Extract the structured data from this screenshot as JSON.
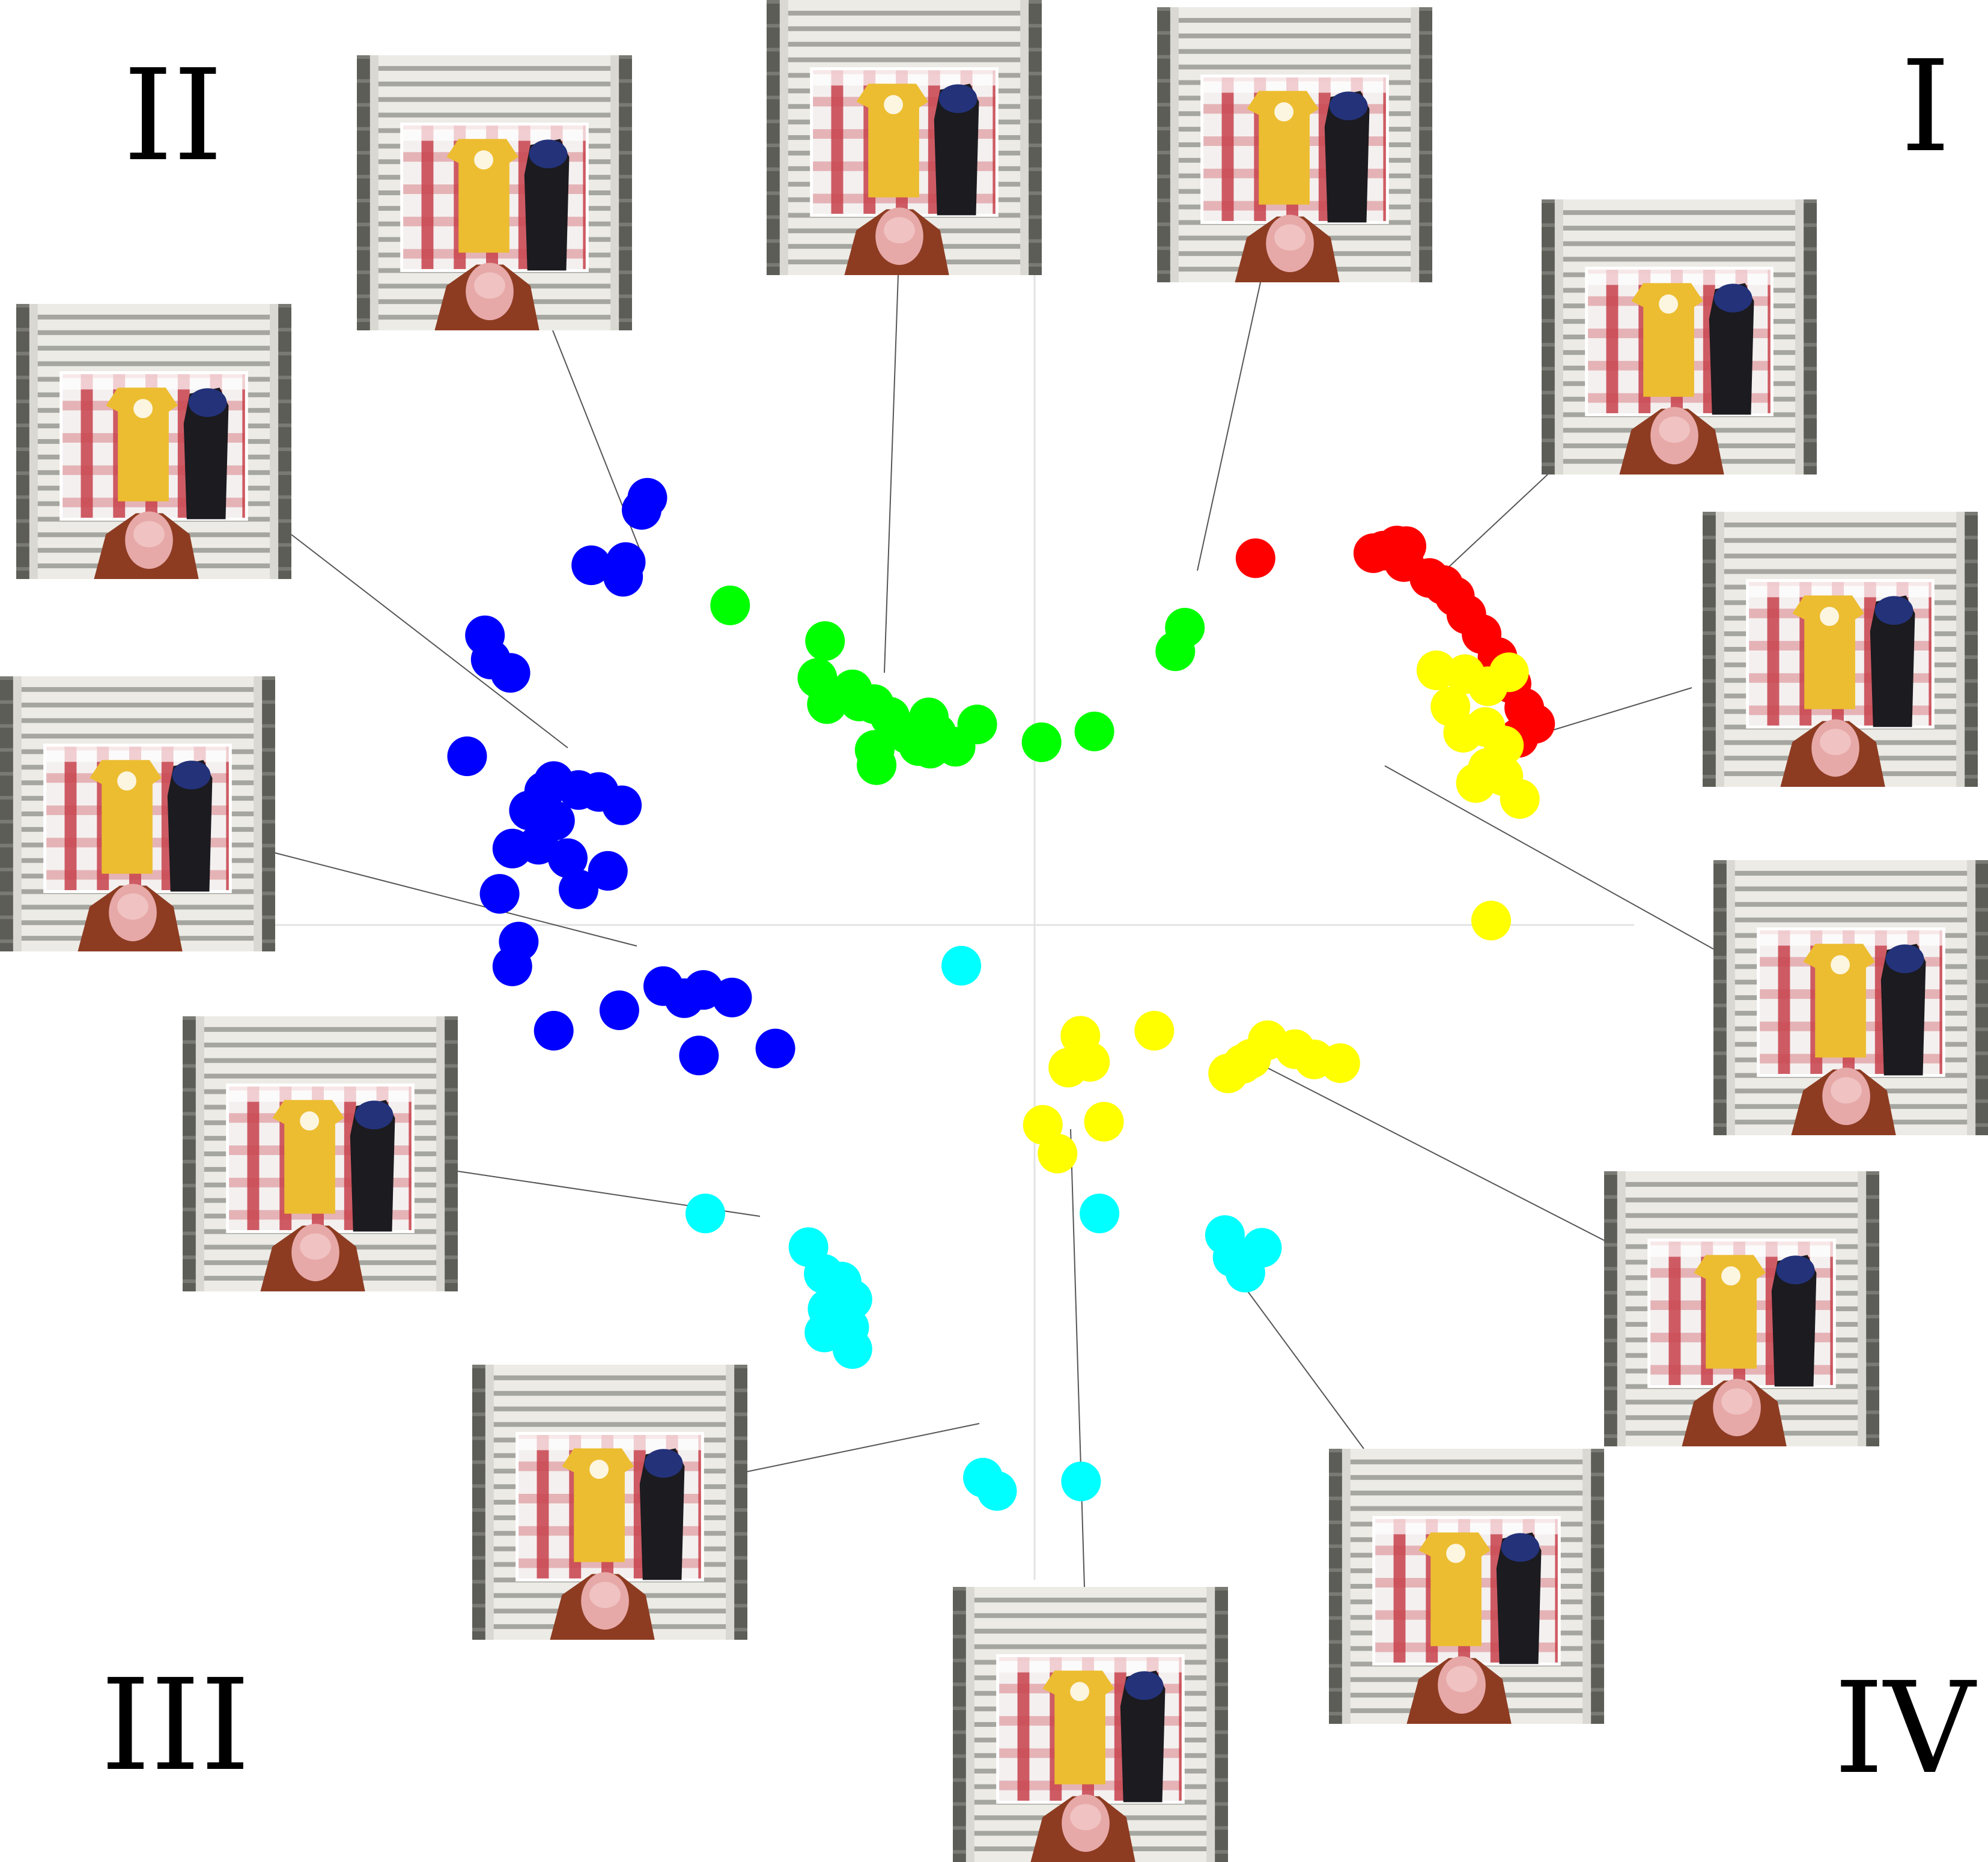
{
  "chart_data": {
    "type": "scatter",
    "title": "",
    "xlabel": "",
    "ylabel": "",
    "xlim": [
      -1.0,
      1.0
    ],
    "ylim": [
      -1.0,
      1.0
    ],
    "grid": false,
    "axes_lines": "cross-through-origin",
    "legend": "none",
    "quadrant_labels": [
      {
        "id": "I",
        "text": "I",
        "position": "top-right"
      },
      {
        "id": "II",
        "text": "II",
        "position": "top-left"
      },
      {
        "id": "III",
        "text": "III",
        "position": "bottom-left"
      },
      {
        "id": "IV",
        "text": "IV",
        "position": "bottom-right"
      }
    ],
    "series": [
      {
        "color": "#ff0000",
        "points": [
          [
            0.347,
            0.576
          ],
          [
            0.532,
            0.584
          ],
          [
            0.548,
            0.588
          ],
          [
            0.569,
            0.596
          ],
          [
            0.584,
            0.595
          ],
          [
            0.58,
            0.57
          ],
          [
            0.62,
            0.545
          ],
          [
            0.642,
            0.534
          ],
          [
            0.66,
            0.516
          ],
          [
            0.678,
            0.488
          ],
          [
            0.702,
            0.457
          ],
          [
            0.727,
            0.421
          ],
          [
            0.749,
            0.379
          ],
          [
            0.769,
            0.341
          ],
          [
            0.786,
            0.316
          ],
          [
            0.76,
            0.294
          ]
        ]
      },
      {
        "color": "#00ff00",
        "points": [
          [
            -0.478,
            0.502
          ],
          [
            -0.329,
            0.446
          ],
          [
            -0.341,
            0.388
          ],
          [
            -0.286,
            0.37
          ],
          [
            -0.252,
            0.347
          ],
          [
            -0.227,
            0.327
          ],
          [
            -0.166,
            0.326
          ],
          [
            -0.09,
            0.315
          ],
          [
            -0.154,
            0.301
          ],
          [
            -0.164,
            0.277
          ],
          [
            -0.182,
            0.281
          ],
          [
            -0.251,
            0.275
          ],
          [
            -0.248,
            0.251
          ],
          [
            -0.326,
            0.347
          ],
          [
            -0.275,
            0.351
          ],
          [
            0.011,
            0.287
          ],
          [
            0.094,
            0.304
          ],
          [
            0.221,
            0.43
          ],
          [
            0.236,
            0.467
          ],
          [
            -0.2,
            0.3
          ],
          [
            -0.124,
            0.28
          ]
        ]
      },
      {
        "color": "#0000ff",
        "points": [
          [
            -0.608,
            0.671
          ],
          [
            -0.617,
            0.652
          ],
          [
            -0.696,
            0.565
          ],
          [
            -0.642,
            0.57
          ],
          [
            -0.646,
            0.547
          ],
          [
            -0.863,
            0.455
          ],
          [
            -0.854,
            0.417
          ],
          [
            -0.823,
            0.396
          ],
          [
            -0.891,
            0.265
          ],
          [
            -0.755,
            0.226
          ],
          [
            -0.716,
            0.212
          ],
          [
            -0.684,
            0.209
          ],
          [
            -0.648,
            0.188
          ],
          [
            -0.753,
            0.164
          ],
          [
            -0.794,
            0.18
          ],
          [
            -0.779,
            0.126
          ],
          [
            -0.733,
            0.105
          ],
          [
            -0.67,
            0.085
          ],
          [
            -0.716,
            0.056
          ],
          [
            -0.84,
            0.049
          ],
          [
            -0.82,
            -0.065
          ],
          [
            -0.81,
            -0.026
          ],
          [
            -0.755,
            -0.166
          ],
          [
            -0.652,
            -0.134
          ],
          [
            -0.55,
            -0.115
          ],
          [
            -0.475,
            -0.114
          ],
          [
            -0.583,
            -0.096
          ],
          [
            -0.52,
            -0.102
          ],
          [
            -0.527,
            -0.205
          ],
          [
            -0.407,
            -0.194
          ],
          [
            -0.77,
            0.21
          ],
          [
            -0.82,
            0.12
          ]
        ]
      },
      {
        "color": "#ffff00",
        "points": [
          [
            0.631,
            0.4
          ],
          [
            0.676,
            0.394
          ],
          [
            0.712,
            0.375
          ],
          [
            0.745,
            0.397
          ],
          [
            0.653,
            0.343
          ],
          [
            0.708,
            0.311
          ],
          [
            0.673,
            0.302
          ],
          [
            0.737,
            0.282
          ],
          [
            0.712,
            0.247
          ],
          [
            0.736,
            0.234
          ],
          [
            0.762,
            0.198
          ],
          [
            0.693,
            0.223
          ],
          [
            0.717,
            0.007
          ],
          [
            0.072,
            -0.174
          ],
          [
            0.053,
            -0.224
          ],
          [
            0.087,
            -0.215
          ],
          [
            0.188,
            -0.166
          ],
          [
            0.366,
            -0.181
          ],
          [
            0.327,
            -0.218
          ],
          [
            0.409,
            -0.195
          ],
          [
            0.439,
            -0.211
          ],
          [
            0.48,
            -0.217
          ],
          [
            0.013,
            -0.314
          ],
          [
            0.036,
            -0.359
          ],
          [
            0.109,
            -0.309
          ],
          [
            0.304,
            -0.233
          ],
          [
            0.34,
            -0.21
          ]
        ]
      },
      {
        "color": "#00ffff",
        "points": [
          [
            -0.115,
            -0.064
          ],
          [
            -0.517,
            -0.453
          ],
          [
            -0.355,
            -0.506
          ],
          [
            -0.331,
            -0.548
          ],
          [
            -0.303,
            -0.56
          ],
          [
            -0.286,
            -0.588
          ],
          [
            -0.325,
            -0.603
          ],
          [
            -0.291,
            -0.632
          ],
          [
            -0.33,
            -0.64
          ],
          [
            -0.286,
            -0.666
          ],
          [
            0.102,
            -0.453
          ],
          [
            0.299,
            -0.487
          ],
          [
            0.311,
            -0.522
          ],
          [
            0.357,
            -0.507
          ],
          [
            0.331,
            -0.546
          ],
          [
            -0.081,
            -0.868
          ],
          [
            -0.059,
            -0.889
          ],
          [
            0.073,
            -0.874
          ]
        ]
      }
    ],
    "annotations": [
      {
        "quadrant": "II",
        "thumbnail": "shirt-front-laid-out"
      },
      {
        "quadrant": "II",
        "thumbnail": "shirt-held-up"
      },
      {
        "quadrant": "I",
        "thumbnail": "shirt-lifted"
      },
      {
        "quadrant": "I",
        "thumbnail": "sleeve-fold"
      },
      {
        "quadrant": "I",
        "thumbnail": "shirt-twisted"
      },
      {
        "quadrant": "I",
        "thumbnail": "shirt-small-fold"
      },
      {
        "quadrant": "II",
        "thumbnail": "arm-fold"
      },
      {
        "quadrant": "II",
        "thumbnail": "side-fold"
      },
      {
        "quadrant": "III",
        "thumbnail": "long-fold"
      },
      {
        "quadrant": "IV",
        "thumbnail": "folded-strip"
      },
      {
        "quadrant": "IV",
        "thumbnail": "folded-strip-pull"
      },
      {
        "quadrant": "III",
        "thumbnail": "strip-flattened"
      },
      {
        "quadrant": "IV",
        "thumbnail": "strip-lifted"
      }
    ]
  }
}
